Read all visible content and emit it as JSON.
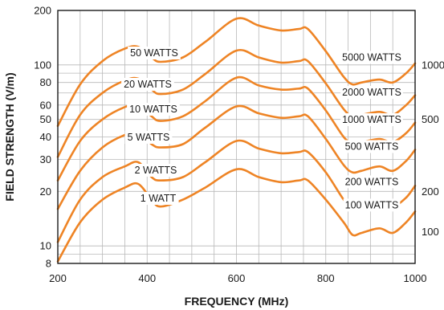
{
  "chart_data": {
    "type": "line",
    "xlabel": "FREQUENCY (MHz)",
    "ylabel": "FIELD STRENGTH  (V/m)",
    "xlim": [
      200,
      1000
    ],
    "ylim": [
      8,
      200
    ],
    "y_scale": "log",
    "x_ticks": [
      "200",
      "400",
      "600",
      "800",
      "1000"
    ],
    "y_ticks": [
      {
        "value": 8,
        "label": "8"
      },
      {
        "value": 10,
        "label": "10"
      },
      {
        "value": 20,
        "label": "20"
      },
      {
        "value": 30,
        "label": "30"
      },
      {
        "value": 40,
        "label": "40"
      },
      {
        "value": 50,
        "label": "50"
      },
      {
        "value": 60,
        "label": "60"
      },
      {
        "value": 80,
        "label": "80"
      },
      {
        "value": 100,
        "label": "100"
      },
      {
        "value": 200,
        "label": "200"
      }
    ],
    "y_grid_values": [
      8,
      9,
      10,
      20,
      30,
      40,
      50,
      60,
      70,
      80,
      90,
      100,
      200
    ],
    "x_grid_values": [
      200,
      250,
      300,
      350,
      400,
      450,
      500,
      550,
      600,
      650,
      700,
      750,
      800,
      850,
      900,
      950,
      1000
    ],
    "right_axis_ticks": [
      {
        "value": 12,
        "label": "100"
      },
      {
        "value": 20,
        "label": "200"
      },
      {
        "value": 50,
        "label": "500"
      },
      {
        "value": 100,
        "label": "1000"
      }
    ],
    "series": [
      {
        "name": "1 WATT",
        "points": [
          [
            200,
            8.2
          ],
          [
            250,
            13.5
          ],
          [
            300,
            18
          ],
          [
            350,
            21
          ],
          [
            380,
            22
          ],
          [
            410,
            18
          ],
          [
            430,
            16.5
          ],
          [
            480,
            18
          ],
          [
            530,
            21
          ],
          [
            600,
            26.5
          ],
          [
            650,
            24
          ],
          [
            700,
            22.5
          ],
          [
            740,
            23
          ],
          [
            760,
            23
          ],
          [
            800,
            18
          ],
          [
            840,
            13.5
          ],
          [
            860,
            11.5
          ],
          [
            880,
            11.8
          ],
          [
            920,
            12.5
          ],
          [
            950,
            11.8
          ],
          [
            980,
            13.5
          ],
          [
            1000,
            15.5
          ]
        ],
        "label_at": [
          245,
          1.3
        ]
      },
      {
        "name": "2 WATTS",
        "points": [
          [
            200,
            10.5
          ],
          [
            250,
            18
          ],
          [
            300,
            24
          ],
          [
            350,
            27.5
          ],
          [
            380,
            29
          ],
          [
            410,
            24
          ],
          [
            430,
            23
          ],
          [
            480,
            24
          ],
          [
            530,
            29
          ],
          [
            600,
            38
          ],
          [
            650,
            34.5
          ],
          [
            700,
            32.5
          ],
          [
            740,
            33
          ],
          [
            760,
            33
          ],
          [
            800,
            25.5
          ],
          [
            840,
            18
          ],
          [
            860,
            16
          ],
          [
            880,
            16.5
          ],
          [
            920,
            17.5
          ],
          [
            950,
            16.5
          ],
          [
            980,
            18.5
          ],
          [
            1000,
            21.5
          ]
        ],
        "label_at": [
          245,
          1.45
        ]
      },
      {
        "name": "5 WATTS",
        "points": [
          [
            200,
            16
          ],
          [
            250,
            26
          ],
          [
            300,
            35
          ],
          [
            350,
            41
          ],
          [
            380,
            42
          ],
          [
            410,
            36.5
          ],
          [
            430,
            35
          ],
          [
            480,
            36.5
          ],
          [
            530,
            45
          ],
          [
            600,
            59
          ],
          [
            650,
            54
          ],
          [
            700,
            51
          ],
          [
            740,
            52
          ],
          [
            760,
            52
          ],
          [
            800,
            39
          ],
          [
            840,
            28
          ],
          [
            860,
            25.5
          ],
          [
            880,
            26
          ],
          [
            920,
            27.5
          ],
          [
            950,
            26
          ],
          [
            980,
            29.5
          ],
          [
            1000,
            34
          ]
        ],
        "label_at": [
          245,
          1.5
        ]
      },
      {
        "name": "10 WATTS",
        "points": [
          [
            200,
            23
          ],
          [
            250,
            38
          ],
          [
            300,
            50
          ],
          [
            350,
            58.5
          ],
          [
            380,
            60
          ],
          [
            410,
            52
          ],
          [
            430,
            49
          ],
          [
            480,
            52
          ],
          [
            530,
            63
          ],
          [
            600,
            85
          ],
          [
            650,
            77
          ],
          [
            700,
            73
          ],
          [
            740,
            74
          ],
          [
            760,
            74
          ],
          [
            800,
            56
          ],
          [
            840,
            40
          ],
          [
            860,
            37
          ],
          [
            880,
            37.5
          ],
          [
            920,
            39
          ],
          [
            950,
            37.5
          ],
          [
            980,
            42
          ],
          [
            1000,
            48
          ]
        ],
        "label_at": [
          245,
          1.55
        ]
      },
      {
        "name": "20 WATTS",
        "points": [
          [
            200,
            31
          ],
          [
            250,
            53
          ],
          [
            300,
            70
          ],
          [
            350,
            82
          ],
          [
            380,
            84
          ],
          [
            410,
            73
          ],
          [
            430,
            69
          ],
          [
            480,
            73
          ],
          [
            530,
            89
          ],
          [
            600,
            120
          ],
          [
            650,
            110
          ],
          [
            700,
            103
          ],
          [
            740,
            105
          ],
          [
            760,
            105
          ],
          [
            800,
            79
          ],
          [
            840,
            57
          ],
          [
            860,
            52
          ],
          [
            880,
            53
          ],
          [
            920,
            55
          ],
          [
            950,
            53
          ],
          [
            980,
            60
          ],
          [
            1000,
            68
          ]
        ],
        "label_at": [
          245,
          1.55
        ]
      },
      {
        "name": "50 WATTS",
        "points": [
          [
            200,
            46
          ],
          [
            250,
            78
          ],
          [
            300,
            105
          ],
          [
            350,
            123
          ],
          [
            380,
            126
          ],
          [
            410,
            110
          ],
          [
            430,
            104
          ],
          [
            480,
            110
          ],
          [
            530,
            134
          ],
          [
            600,
            180
          ],
          [
            650,
            165
          ],
          [
            700,
            155
          ],
          [
            740,
            158
          ],
          [
            760,
            158
          ],
          [
            800,
            119
          ],
          [
            840,
            86
          ],
          [
            860,
            78
          ],
          [
            880,
            80
          ],
          [
            920,
            83
          ],
          [
            950,
            80
          ],
          [
            980,
            90
          ],
          [
            1000,
            102
          ]
        ],
        "label_at": [
          245,
          1.55
        ]
      }
    ],
    "right_labels": [
      {
        "text": "100 WATTS",
        "value": 16.8
      },
      {
        "text": "200 WATTS",
        "value": 22.6
      },
      {
        "text": "500 WATTS",
        "value": 35.4
      },
      {
        "text": "1000 WATTS",
        "value": 49.8
      },
      {
        "text": "2000 WATTS",
        "value": 70.5
      },
      {
        "text": "5000 WATTS",
        "value": 110
      }
    ],
    "colors": {
      "curve": "#ee8425",
      "grid": "#b8b8b8",
      "frame": "#1a1a1a"
    }
  }
}
